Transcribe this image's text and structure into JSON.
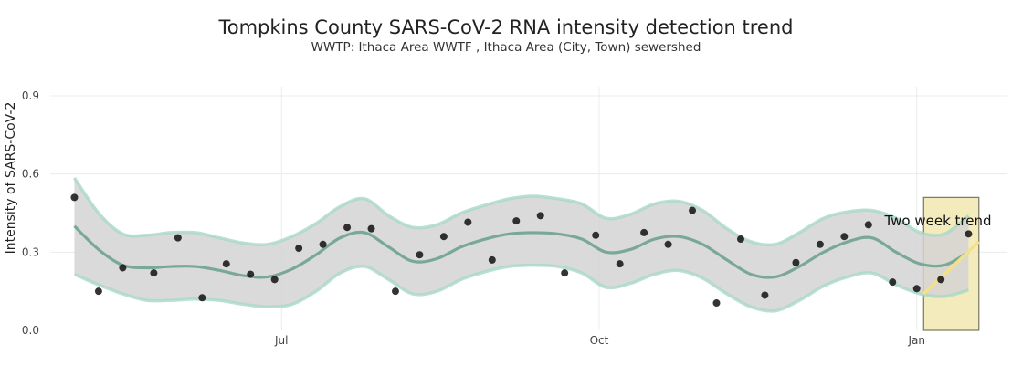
{
  "chart_data": {
    "type": "scatter",
    "title": "Tompkins County SARS-CoV-2 RNA intensity detection trend",
    "subtitle": "WWTP: Ithaca Area WWTF , Ithaca Area (City, Town) sewershed",
    "ylabel": "Intensity of SARS-CoV-2",
    "xlabel": "",
    "ylim": [
      0,
      0.9
    ],
    "yticks": [
      "0.0",
      "0.3",
      "0.6",
      "0.9"
    ],
    "xticks": [
      {
        "label": "Jul",
        "date": "2022-07-01"
      },
      {
        "label": "Oct",
        "date": "2022-10-01"
      },
      {
        "label": "Jan",
        "date": "2023-01-01"
      }
    ],
    "xrange": [
      "2022-04-25",
      "2023-01-27"
    ],
    "grid": true,
    "points": [
      {
        "x": "2022-05-02",
        "y": 0.51
      },
      {
        "x": "2022-05-09",
        "y": 0.15
      },
      {
        "x": "2022-05-16",
        "y": 0.24
      },
      {
        "x": "2022-05-25",
        "y": 0.22
      },
      {
        "x": "2022-06-01",
        "y": 0.355
      },
      {
        "x": "2022-06-08",
        "y": 0.125
      },
      {
        "x": "2022-06-15",
        "y": 0.255
      },
      {
        "x": "2022-06-22",
        "y": 0.215
      },
      {
        "x": "2022-06-29",
        "y": 0.195
      },
      {
        "x": "2022-07-06",
        "y": 0.315
      },
      {
        "x": "2022-07-13",
        "y": 0.33
      },
      {
        "x": "2022-07-20",
        "y": 0.395
      },
      {
        "x": "2022-07-27",
        "y": 0.39
      },
      {
        "x": "2022-08-03",
        "y": 0.15
      },
      {
        "x": "2022-08-10",
        "y": 0.29
      },
      {
        "x": "2022-08-17",
        "y": 0.36
      },
      {
        "x": "2022-08-24",
        "y": 0.415
      },
      {
        "x": "2022-08-31",
        "y": 0.27
      },
      {
        "x": "2022-09-07",
        "y": 0.42
      },
      {
        "x": "2022-09-14",
        "y": 0.44
      },
      {
        "x": "2022-09-21",
        "y": 0.22
      },
      {
        "x": "2022-09-30",
        "y": 0.365
      },
      {
        "x": "2022-10-07",
        "y": 0.255
      },
      {
        "x": "2022-10-14",
        "y": 0.375
      },
      {
        "x": "2022-10-21",
        "y": 0.33
      },
      {
        "x": "2022-10-28",
        "y": 0.46
      },
      {
        "x": "2022-11-04",
        "y": 0.105
      },
      {
        "x": "2022-11-11",
        "y": 0.35
      },
      {
        "x": "2022-11-18",
        "y": 0.135
      },
      {
        "x": "2022-11-27",
        "y": 0.26
      },
      {
        "x": "2022-12-04",
        "y": 0.33
      },
      {
        "x": "2022-12-11",
        "y": 0.36
      },
      {
        "x": "2022-12-18",
        "y": 0.405
      },
      {
        "x": "2022-12-25",
        "y": 0.185
      },
      {
        "x": "2023-01-01",
        "y": 0.16
      },
      {
        "x": "2023-01-08",
        "y": 0.195
      },
      {
        "x": "2023-01-16",
        "y": 0.37
      }
    ],
    "trend": {
      "x": [
        "2022-05-02",
        "2022-05-09",
        "2022-05-16",
        "2022-05-23",
        "2022-05-30",
        "2022-06-06",
        "2022-06-13",
        "2022-06-20",
        "2022-06-27",
        "2022-07-04",
        "2022-07-11",
        "2022-07-18",
        "2022-07-25",
        "2022-08-01",
        "2022-08-08",
        "2022-08-15",
        "2022-08-22",
        "2022-08-29",
        "2022-09-05",
        "2022-09-12",
        "2022-09-19",
        "2022-09-26",
        "2022-10-03",
        "2022-10-10",
        "2022-10-17",
        "2022-10-24",
        "2022-10-31",
        "2022-11-07",
        "2022-11-14",
        "2022-11-21",
        "2022-11-28",
        "2022-12-05",
        "2022-12-12",
        "2022-12-19",
        "2022-12-26",
        "2023-01-02",
        "2023-01-09",
        "2023-01-16"
      ],
      "mean": [
        0.4,
        0.31,
        0.25,
        0.24,
        0.245,
        0.245,
        0.23,
        0.21,
        0.205,
        0.235,
        0.29,
        0.355,
        0.375,
        0.32,
        0.265,
        0.275,
        0.32,
        0.35,
        0.37,
        0.375,
        0.37,
        0.35,
        0.3,
        0.31,
        0.35,
        0.36,
        0.33,
        0.27,
        0.215,
        0.205,
        0.245,
        0.3,
        0.34,
        0.355,
        0.3,
        0.255,
        0.25,
        0.3
      ],
      "upper": [
        0.585,
        0.45,
        0.37,
        0.365,
        0.375,
        0.375,
        0.355,
        0.335,
        0.33,
        0.36,
        0.41,
        0.475,
        0.505,
        0.44,
        0.395,
        0.405,
        0.45,
        0.48,
        0.505,
        0.515,
        0.505,
        0.485,
        0.43,
        0.445,
        0.485,
        0.495,
        0.46,
        0.39,
        0.34,
        0.33,
        0.375,
        0.43,
        0.455,
        0.46,
        0.43,
        0.375,
        0.37,
        0.44
      ],
      "lower": [
        0.215,
        0.175,
        0.14,
        0.115,
        0.115,
        0.12,
        0.115,
        0.1,
        0.09,
        0.1,
        0.15,
        0.22,
        0.245,
        0.195,
        0.14,
        0.15,
        0.195,
        0.225,
        0.245,
        0.25,
        0.245,
        0.22,
        0.165,
        0.18,
        0.215,
        0.23,
        0.2,
        0.14,
        0.09,
        0.075,
        0.115,
        0.17,
        0.205,
        0.22,
        0.175,
        0.14,
        0.13,
        0.155
      ]
    },
    "two_week_trend": {
      "label": "Two week trend",
      "x_start": "2023-01-03",
      "x_end": "2023-01-19",
      "y_box": [
        0,
        0.51
      ],
      "line": {
        "x": [
          "2023-01-03",
          "2023-01-19"
        ],
        "y": [
          0.14,
          0.34
        ]
      }
    },
    "colors": {
      "band_fill": "#d3d3d3",
      "band_edge": "#a9d8c6",
      "trend_line": "#7aa898",
      "points": "#111111",
      "highlight_fill": "#f2e7b0",
      "highlight_edge": "#777766",
      "trend_segment": "#f5e08a"
    }
  }
}
